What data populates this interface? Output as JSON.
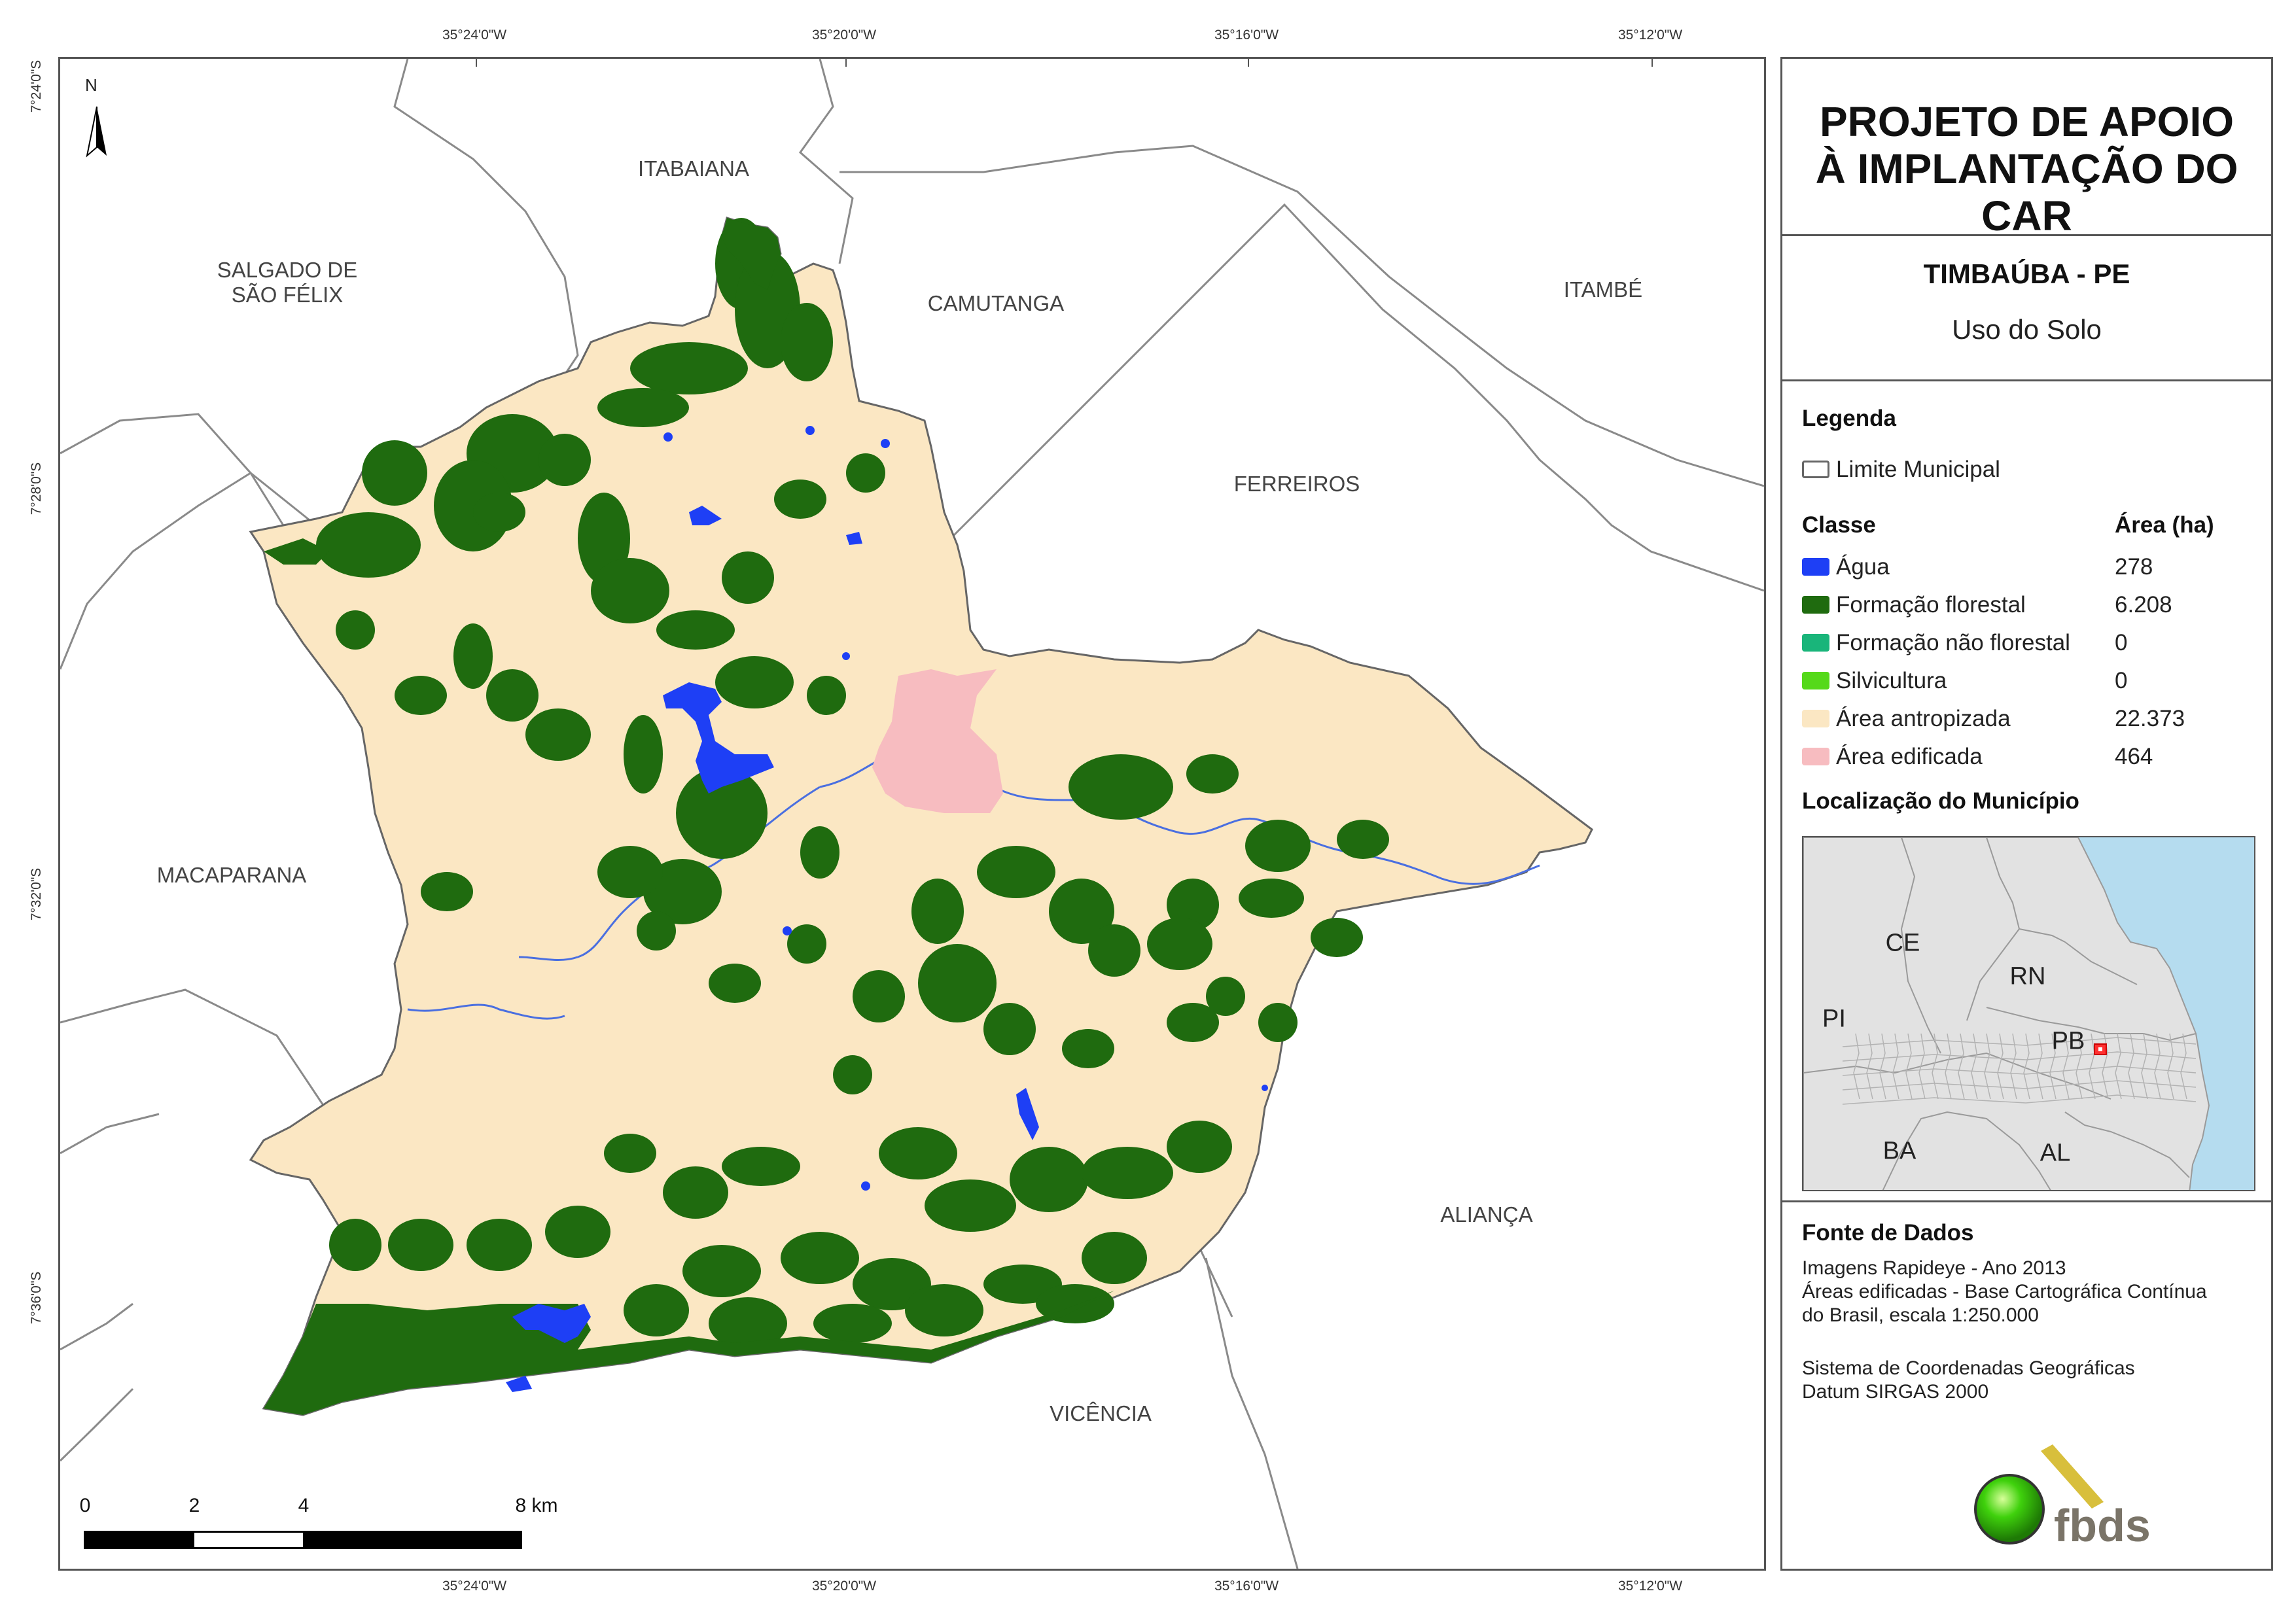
{
  "coords": {
    "top": [
      "35°24'0\"W",
      "35°20'0\"W",
      "35°16'0\"W",
      "35°12'0\"W"
    ],
    "bottom": [
      "35°24'0\"W",
      "35°20'0\"W",
      "35°16'0\"W",
      "35°12'0\"W"
    ],
    "left": [
      "7°24'0\"S",
      "7°28'0\"S",
      "7°32'0\"S",
      "7°36'0\"S"
    ]
  },
  "north_arrow": {
    "label": "N"
  },
  "municipalities": {
    "itabaiana": "ITABAIANA",
    "salgado": "SALGADO DE\nSÃO FÉLIX",
    "camutanga": "CAMUTANGA",
    "itambe": "ITAMBÉ",
    "ferreiros": "FERREIROS",
    "macaparana": "MACAPARANA",
    "alianca": "ALIANÇA",
    "vicencia": "VICÊNCIA"
  },
  "scale": {
    "labels": [
      "0",
      "2",
      "4",
      "8 km"
    ]
  },
  "panel": {
    "title": "PROJETO DE APOIO À IMPLANTAÇÃO DO CAR",
    "subtitle": "TIMBAÚBA - PE",
    "theme": "Uso do Solo",
    "legend_header": "Legenda",
    "boundary_label": "Limite Municipal",
    "class_header": "Classe",
    "area_header": "Área (ha)",
    "classes": [
      {
        "label": "Água",
        "area": "278",
        "color": "#1e3ff5"
      },
      {
        "label": "Formação florestal",
        "area": "6.208",
        "color": "#1f6b0f"
      },
      {
        "label": "Formação não florestal",
        "area": "0",
        "color": "#19b57a"
      },
      {
        "label": "Silvicultura",
        "area": "0",
        "color": "#55d91a"
      },
      {
        "label": "Área antropizada",
        "area": "22.373",
        "color": "#fbe7c3"
      },
      {
        "label": "Área edificada",
        "area": "464",
        "color": "#f7bcc0"
      }
    ],
    "location_header": "Localização do Município",
    "inset_states": [
      "CE",
      "RN",
      "PI",
      "PB",
      "BA",
      "AL"
    ],
    "sources_header": "Fonte de Dados",
    "sources": [
      "Imagens Rapideye - Ano 2013",
      "Áreas edificadas - Base Cartográfica Contínua",
      "do Brasil, escala 1:250.000",
      "Sistema de Coordenadas Geográficas",
      "Datum SIRGAS 2000"
    ],
    "logo_text": "fbds"
  }
}
